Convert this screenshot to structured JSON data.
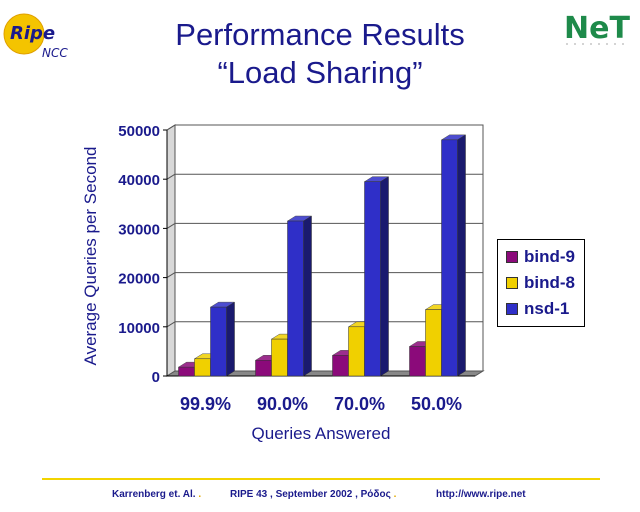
{
  "header": {
    "title_line1": "Performance Results",
    "title_line2": "“Load Sharing”"
  },
  "logos": {
    "ripe_main": "Ripe",
    "ripe_sub": "NCC",
    "net": "NeT"
  },
  "chart_data": {
    "type": "bar",
    "title": "",
    "xlabel": "Queries Answered",
    "ylabel": "Average Queries per Second",
    "categories": [
      "99.9%",
      "90.0%",
      "70.0%",
      "50.0%"
    ],
    "ylim": [
      0,
      50000
    ],
    "yticks": [
      "0",
      "10000",
      "20000",
      "30000",
      "40000",
      "50000"
    ],
    "grid": true,
    "legend_position": "right",
    "series": [
      {
        "name": "bind-9",
        "color": "#8b0a7a",
        "values": [
          1800,
          3200,
          4200,
          6000
        ]
      },
      {
        "name": "bind-8",
        "color": "#f0d000",
        "values": [
          3500,
          7500,
          10000,
          13500
        ]
      },
      {
        "name": "nsd-1",
        "color": "#2f2fc8",
        "values": [
          14000,
          31500,
          39500,
          48000
        ]
      }
    ]
  },
  "footer": {
    "authors": "Karrenberg et. Al.",
    "event": "RIPE 43 ,  September 2002 , Ρόδος",
    "url": "http://www.ripe.net",
    "separator": "."
  }
}
